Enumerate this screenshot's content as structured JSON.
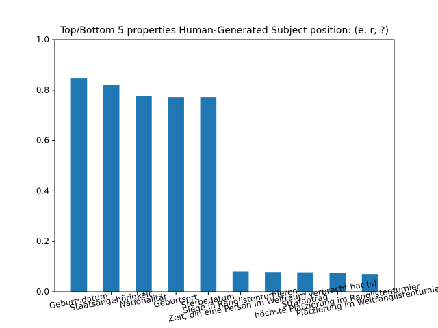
{
  "chart_data": {
    "type": "bar",
    "title": "Top/Bottom 5 properties Human-Generated Subject position: (e, r, ?)",
    "xlabel": "",
    "ylabel": "",
    "ylim": [
      0,
      1.0
    ],
    "yticks": [
      "0.0",
      "0.2",
      "0.4",
      "0.6",
      "0.8",
      "1.0"
    ],
    "categories": [
      "Geburtsdatum",
      "Staatsangehörigkeit",
      "Nationalität",
      "Geburtsort",
      "Sterbedatum",
      "Siege in Ranglistenturnieren",
      "Zeit, die eine Person im Weltraum verbracht hat (s)",
      "Strafantrag",
      "höchste Platzierung im Ranglistenturnier",
      "Platzierung im Weltranglistenturnier"
    ],
    "values": [
      0.848,
      0.821,
      0.777,
      0.772,
      0.772,
      0.08,
      0.078,
      0.077,
      0.075,
      0.07
    ],
    "colors": {
      "bar": "#1f77b4"
    },
    "grid": false,
    "legend": "none"
  }
}
